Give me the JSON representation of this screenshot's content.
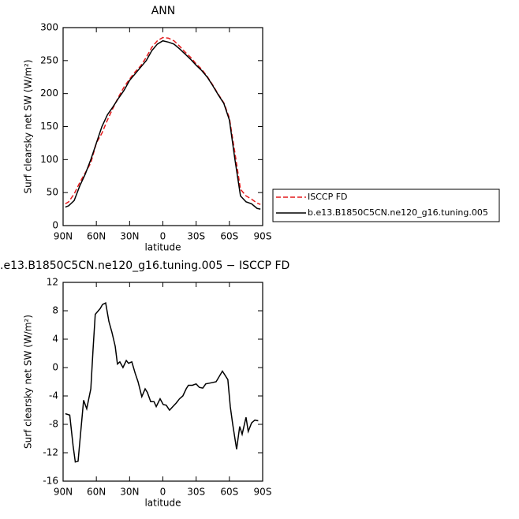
{
  "chart_data": [
    {
      "type": "line",
      "title": "ANN",
      "xlabel": "latitude",
      "ylabel": "Surf clearsky net SW (W/m²)",
      "x": [
        88,
        85,
        80,
        75,
        70,
        65,
        60,
        55,
        50,
        45,
        40,
        35,
        30,
        25,
        20,
        15,
        10,
        5,
        0,
        -5,
        -10,
        -15,
        -20,
        -25,
        -30,
        -35,
        -40,
        -45,
        -50,
        -55,
        -60,
        -65,
        -70,
        -75,
        -80,
        -85,
        -88
      ],
      "xlim": [
        90,
        -90
      ],
      "xticks": [
        {
          "value": 90,
          "label": "90N"
        },
        {
          "value": 60,
          "label": "60N"
        },
        {
          "value": 30,
          "label": "30N"
        },
        0,
        {
          "value": -30,
          "label": "30S"
        },
        {
          "value": -60,
          "label": "60S"
        },
        {
          "value": -90,
          "label": "90S"
        }
      ],
      "ylim": [
        0,
        300
      ],
      "yticks": [
        0,
        50,
        100,
        150,
        200,
        250,
        300
      ],
      "legend": "right",
      "series": [
        {
          "name": "ISCCP FD",
          "color": "#e41a1c",
          "linestyle": "dashed",
          "values": [
            33,
            36,
            48,
            65,
            80,
            95,
            125,
            140,
            160,
            178,
            195,
            210,
            222,
            233,
            242,
            255,
            270,
            280,
            285,
            284,
            280,
            272,
            263,
            255,
            245,
            237,
            226,
            213,
            199,
            186,
            163,
            110,
            55,
            45,
            40,
            34,
            32
          ]
        },
        {
          "name": "b.e13.B1850C5CN.ne120_g16.tuning.005",
          "color": "#000000",
          "linestyle": "solid",
          "values": [
            28,
            30,
            38,
            60,
            78,
            100,
            125,
            150,
            168,
            180,
            193,
            205,
            220,
            230,
            240,
            250,
            265,
            275,
            280,
            278,
            275,
            268,
            260,
            252,
            243,
            235,
            225,
            212,
            198,
            185,
            160,
            100,
            45,
            36,
            33,
            26,
            25
          ]
        }
      ]
    },
    {
      "type": "line",
      "title": ".e13.B1850C5CN.ne120_g16.tuning.005 − ISCCP FD",
      "xlabel": "latitude",
      "ylabel": "Surf clearsky net SW (W/m²)",
      "x": [
        88,
        84,
        81,
        79,
        76.5,
        71.5,
        68.7,
        65,
        63,
        61,
        56.6,
        54.4,
        51.6,
        48.7,
        46,
        43,
        41,
        38.8,
        36,
        33,
        31,
        28,
        25,
        22.4,
        19,
        16,
        14,
        11,
        8,
        6,
        2.5,
        -0.3,
        -3,
        -6,
        -9,
        -12,
        -15,
        -18,
        -21,
        -23,
        -26.6,
        -30,
        -33,
        -36,
        -38.7,
        -42,
        -48,
        -53.7,
        -58.6,
        -60.8,
        -63,
        -66.5,
        -69.3,
        -71.5,
        -75,
        -77,
        -80,
        -83,
        -86
      ],
      "xlim": [
        90,
        -90
      ],
      "xticks": [
        {
          "value": 90,
          "label": "90N"
        },
        {
          "value": 60,
          "label": "60N"
        },
        {
          "value": 30,
          "label": "30N"
        },
        0,
        {
          "value": -30,
          "label": "30S"
        },
        {
          "value": -60,
          "label": "60S"
        },
        {
          "value": -90,
          "label": "90S"
        }
      ],
      "ylim": [
        -16,
        12
      ],
      "yticks": [
        -16,
        -12,
        -8,
        -4,
        0,
        4,
        8,
        12
      ],
      "series": [
        {
          "color": "#000000",
          "linestyle": "solid",
          "values": [
            -6.5,
            -6.7,
            -11,
            -13.3,
            -13.2,
            -4.6,
            -5.8,
            -3,
            2.5,
            7.5,
            8.3,
            8.9,
            9.1,
            6.5,
            5,
            3,
            0.5,
            0.8,
            0,
            1,
            0.6,
            0.8,
            -0.8,
            -2,
            -4.1,
            -3,
            -3.5,
            -4.8,
            -4.8,
            -5.5,
            -4.4,
            -5.2,
            -5.3,
            -6,
            -5.5,
            -5,
            -4.4,
            -4,
            -3,
            -2.5,
            -2.5,
            -2.3,
            -2.8,
            -2.9,
            -2.3,
            -2.2,
            -2,
            -0.5,
            -1.7,
            -5.5,
            -8,
            -11.5,
            -8.3,
            -9.4,
            -7,
            -9,
            -7.8,
            -7.4,
            -7.5
          ]
        }
      ]
    }
  ]
}
